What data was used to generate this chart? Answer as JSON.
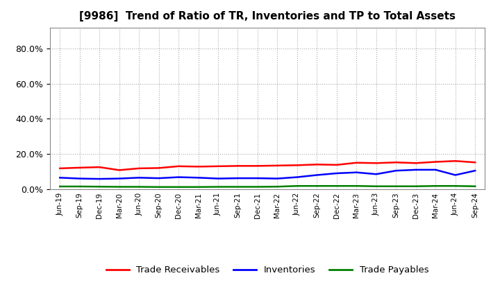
{
  "title": "[9986]  Trend of Ratio of TR, Inventories and TP to Total Assets",
  "x_labels": [
    "Jun-19",
    "Sep-19",
    "Dec-19",
    "Mar-20",
    "Jun-20",
    "Sep-20",
    "Dec-20",
    "Mar-21",
    "Jun-21",
    "Sep-21",
    "Dec-21",
    "Mar-22",
    "Jun-22",
    "Sep-22",
    "Dec-22",
    "Mar-23",
    "Jun-23",
    "Sep-23",
    "Dec-23",
    "Mar-24",
    "Jun-24",
    "Sep-24"
  ],
  "trade_receivables": [
    0.118,
    0.122,
    0.125,
    0.108,
    0.118,
    0.12,
    0.13,
    0.128,
    0.13,
    0.132,
    0.132,
    0.134,
    0.136,
    0.14,
    0.138,
    0.15,
    0.148,
    0.152,
    0.148,
    0.155,
    0.16,
    0.152
  ],
  "inventories": [
    0.065,
    0.06,
    0.058,
    0.06,
    0.065,
    0.062,
    0.068,
    0.065,
    0.06,
    0.062,
    0.062,
    0.06,
    0.068,
    0.08,
    0.09,
    0.095,
    0.085,
    0.105,
    0.11,
    0.11,
    0.08,
    0.105
  ],
  "trade_payables": [
    0.015,
    0.015,
    0.014,
    0.013,
    0.013,
    0.012,
    0.012,
    0.012,
    0.013,
    0.013,
    0.013,
    0.014,
    0.018,
    0.018,
    0.018,
    0.018,
    0.016,
    0.016,
    0.016,
    0.018,
    0.018,
    0.016
  ],
  "tr_color": "#ff0000",
  "inv_color": "#0000ff",
  "tp_color": "#008000",
  "ylim": [
    0.0,
    0.92
  ],
  "yticks": [
    0.0,
    0.2,
    0.4,
    0.6,
    0.8
  ],
  "background_color": "#ffffff",
  "grid_color": "#aaaaaa",
  "legend_labels": [
    "Trade Receivables",
    "Inventories",
    "Trade Payables"
  ]
}
